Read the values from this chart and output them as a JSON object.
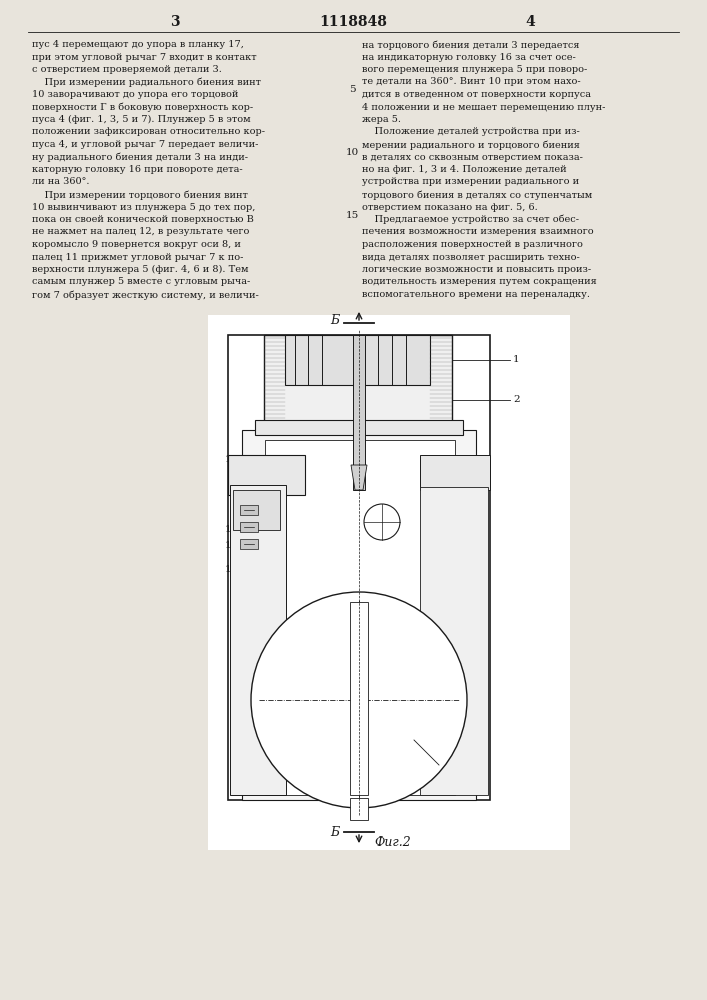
{
  "page_number_left": "3",
  "patent_number": "1118848",
  "page_number_right": "4",
  "col_left_text": [
    "пус 4 перемещают до упора в планку 17,",
    "при этом угловой рычаг 7 входит в контакт",
    "с отверстием проверяемой детали 3.",
    "    При измерении радиального биения винт",
    "10 заворачивают до упора его торцовой",
    "поверхности Г в боковую поверхность кор-",
    "пуса 4 (фиг. 1, 3, 5 и 7). Плунжер 5 в этом",
    "положении зафиксирован относительно кор-",
    "пуса 4, и угловой рычаг 7 передает величи-",
    "ну радиального биения детали 3 на инди-",
    "каторную головку 16 при повороте дета-",
    "ли на 360°.",
    "    При измерении торцового биения винт",
    "10 вывинчивают из плунжера 5 до тех пор,",
    "пока он своей конической поверхностью В",
    "не нажмет на палец 12, в результате чего",
    "коромысло 9 повернется вокруг оси 8, и",
    "палец 11 прижмет угловой рычаг 7 к по-",
    "верхности плунжера 5 (фиг. 4, 6 и 8). Тем",
    "самым плунжер 5 вместе с угловым рыча-",
    "гом 7 образует жесткую систему, и величи-"
  ],
  "col_right_text": [
    "на торцового биения детали 3 передается",
    "на индикаторную головку 16 за счет осе-",
    "вого перемещения плунжера 5 при поворо-",
    "те детали на 360°. Винт 10 при этом нахо-",
    "дится в отведенном от поверхности корпуса",
    "4 положении и не мешает перемещению плун-",
    "жера 5.",
    "    Положение деталей устройства при из-",
    "мерении радиального и торцового биения",
    "в деталях со сквозным отверстием показа-",
    "но на фиг. 1, 3 и 4. Положение деталей",
    "устройства при измерении радиального и",
    "торцового биения в деталях со ступенчатым",
    "отверстием показано на фиг. 5, 6.",
    "    Предлагаемое устройство за счет обес-",
    "печения возможности измерения взаимного",
    "расположения поверхностей в различного",
    "вида деталях позволяет расширить техно-",
    "логические возможности и повысить произ-",
    "водительность измерения путем сокращения",
    "вспомогательного времени на переналадку."
  ],
  "fig_label": "Фиг.2",
  "bg_color": "#e8e4dc",
  "line_color": "#1a1a1a",
  "text_color": "#1a1a1a",
  "draw_color": "#1a1a1a"
}
